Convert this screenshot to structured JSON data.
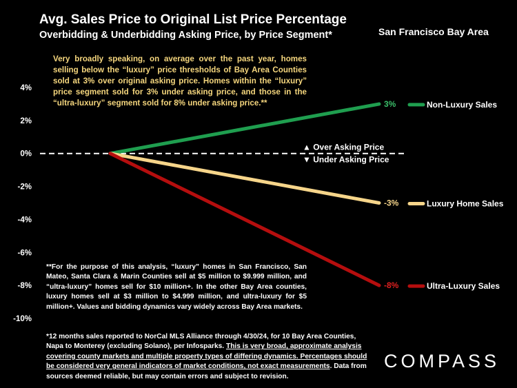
{
  "header": {
    "title": "Avg. Sales Price to Original List Price Percentage",
    "subtitle": "Overbidding & Underbidding Asking Price, by Price Segment*",
    "region": "San Francisco Bay Area"
  },
  "note": "Very broadly speaking, on average over the past year, homes selling below the “luxury” price thresholds of Bay Area Counties sold at 3% over original asking price. Homes within the “luxury” price segment sold for 3% under asking price, and those in the “ultra-luxury” segment sold for 8% under asking price.**",
  "footnote_luxury": "**For the purpose of this analysis, “luxury” homes in San Francisco, San Mateo, Santa Clara & Marin Counties sell at $5 million to $9.999 million, and “ultra-luxury” homes sell for $10 million+. In the other Bay Area counties, luxury homes sell at $3 million to $4.999 million, and ultra-luxury for $5 million+. Values and bidding dynamics vary widely across Bay Area markets.",
  "footnote_source": {
    "part1": "*12 months sales reported to NorCal MLS Alliance through 4/30/24, for 10 Bay Area Counties, Napa to Monterey (excluding Solano), per Infosparks. ",
    "underlined": "This is very broad, approximate analysis covering county markets and multiple property types of differing dynamics. Percentages should be considered very general indicators of market conditions, not exact measurements",
    "part2": ". Data from sources deemed reliable, but may contain errors and subject to revision."
  },
  "logo": "COMPASS",
  "chart_data": {
    "type": "line",
    "ylim": [
      -10,
      4
    ],
    "yticks": [
      4,
      2,
      0,
      -2,
      -4,
      -6,
      -8,
      -10
    ],
    "ytick_labels": [
      "4%",
      "2%",
      "0%",
      "-2%",
      "-4%",
      "-6%",
      "-8%",
      "-10%"
    ],
    "grid": false,
    "baseline": {
      "value": 0,
      "style": "dashed",
      "above_label": "▲ Over Asking Price",
      "below_label": "▼ Under Asking Price"
    },
    "series": [
      {
        "name": "Non-Luxury Sales",
        "start": 0,
        "end": 3,
        "end_label": "3%",
        "color": "#1f9e4f",
        "label_color": "#3bbf6a"
      },
      {
        "name": "Luxury Home Sales",
        "start": 0,
        "end": -3,
        "end_label": "-3%",
        "color": "#f6d58a",
        "label_color": "#f6d58a"
      },
      {
        "name": "Ultra-Luxury Sales",
        "start": 0,
        "end": -8,
        "end_label": "-8%",
        "color": "#b50e0e",
        "label_color": "#e02020"
      }
    ],
    "legend_placement": "right"
  }
}
